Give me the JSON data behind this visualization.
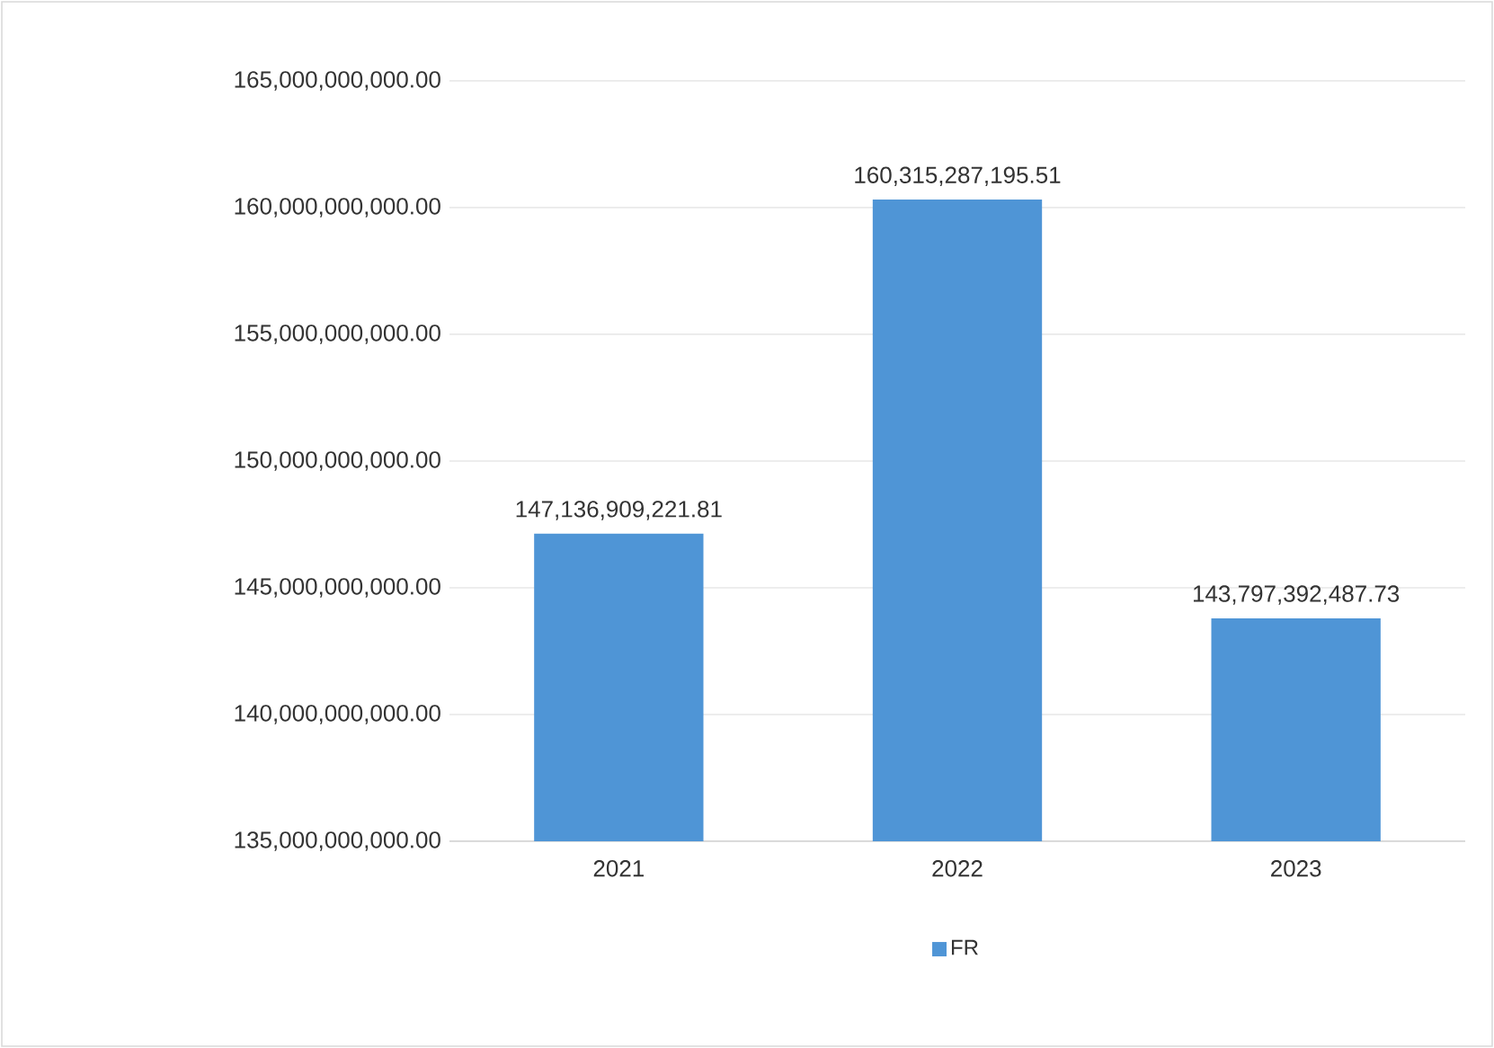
{
  "chart_data": {
    "type": "bar",
    "categories": [
      "2021",
      "2022",
      "2023"
    ],
    "series": [
      {
        "name": "FR",
        "color": "#4f95d6",
        "values": [
          147136909221.81,
          160315287195.51,
          143797392487.73
        ],
        "value_labels": [
          "147,136,909,221.81",
          "160,315,287,195.51",
          "143,797,392,487.73"
        ]
      }
    ],
    "ylim": [
      135000000000,
      165000000000
    ],
    "yticks": [
      {
        "value": 135000000000,
        "label": "135,000,000,000.00"
      },
      {
        "value": 140000000000,
        "label": "140,000,000,000.00"
      },
      {
        "value": 145000000000,
        "label": "145,000,000,000.00"
      },
      {
        "value": 150000000000,
        "label": "150,000,000,000.00"
      },
      {
        "value": 155000000000,
        "label": "155,000,000,000.00"
      },
      {
        "value": 160000000000,
        "label": "160,000,000,000.00"
      },
      {
        "value": 165000000000,
        "label": "165,000,000,000.00"
      }
    ],
    "grid": "y",
    "legend": "bottom"
  }
}
